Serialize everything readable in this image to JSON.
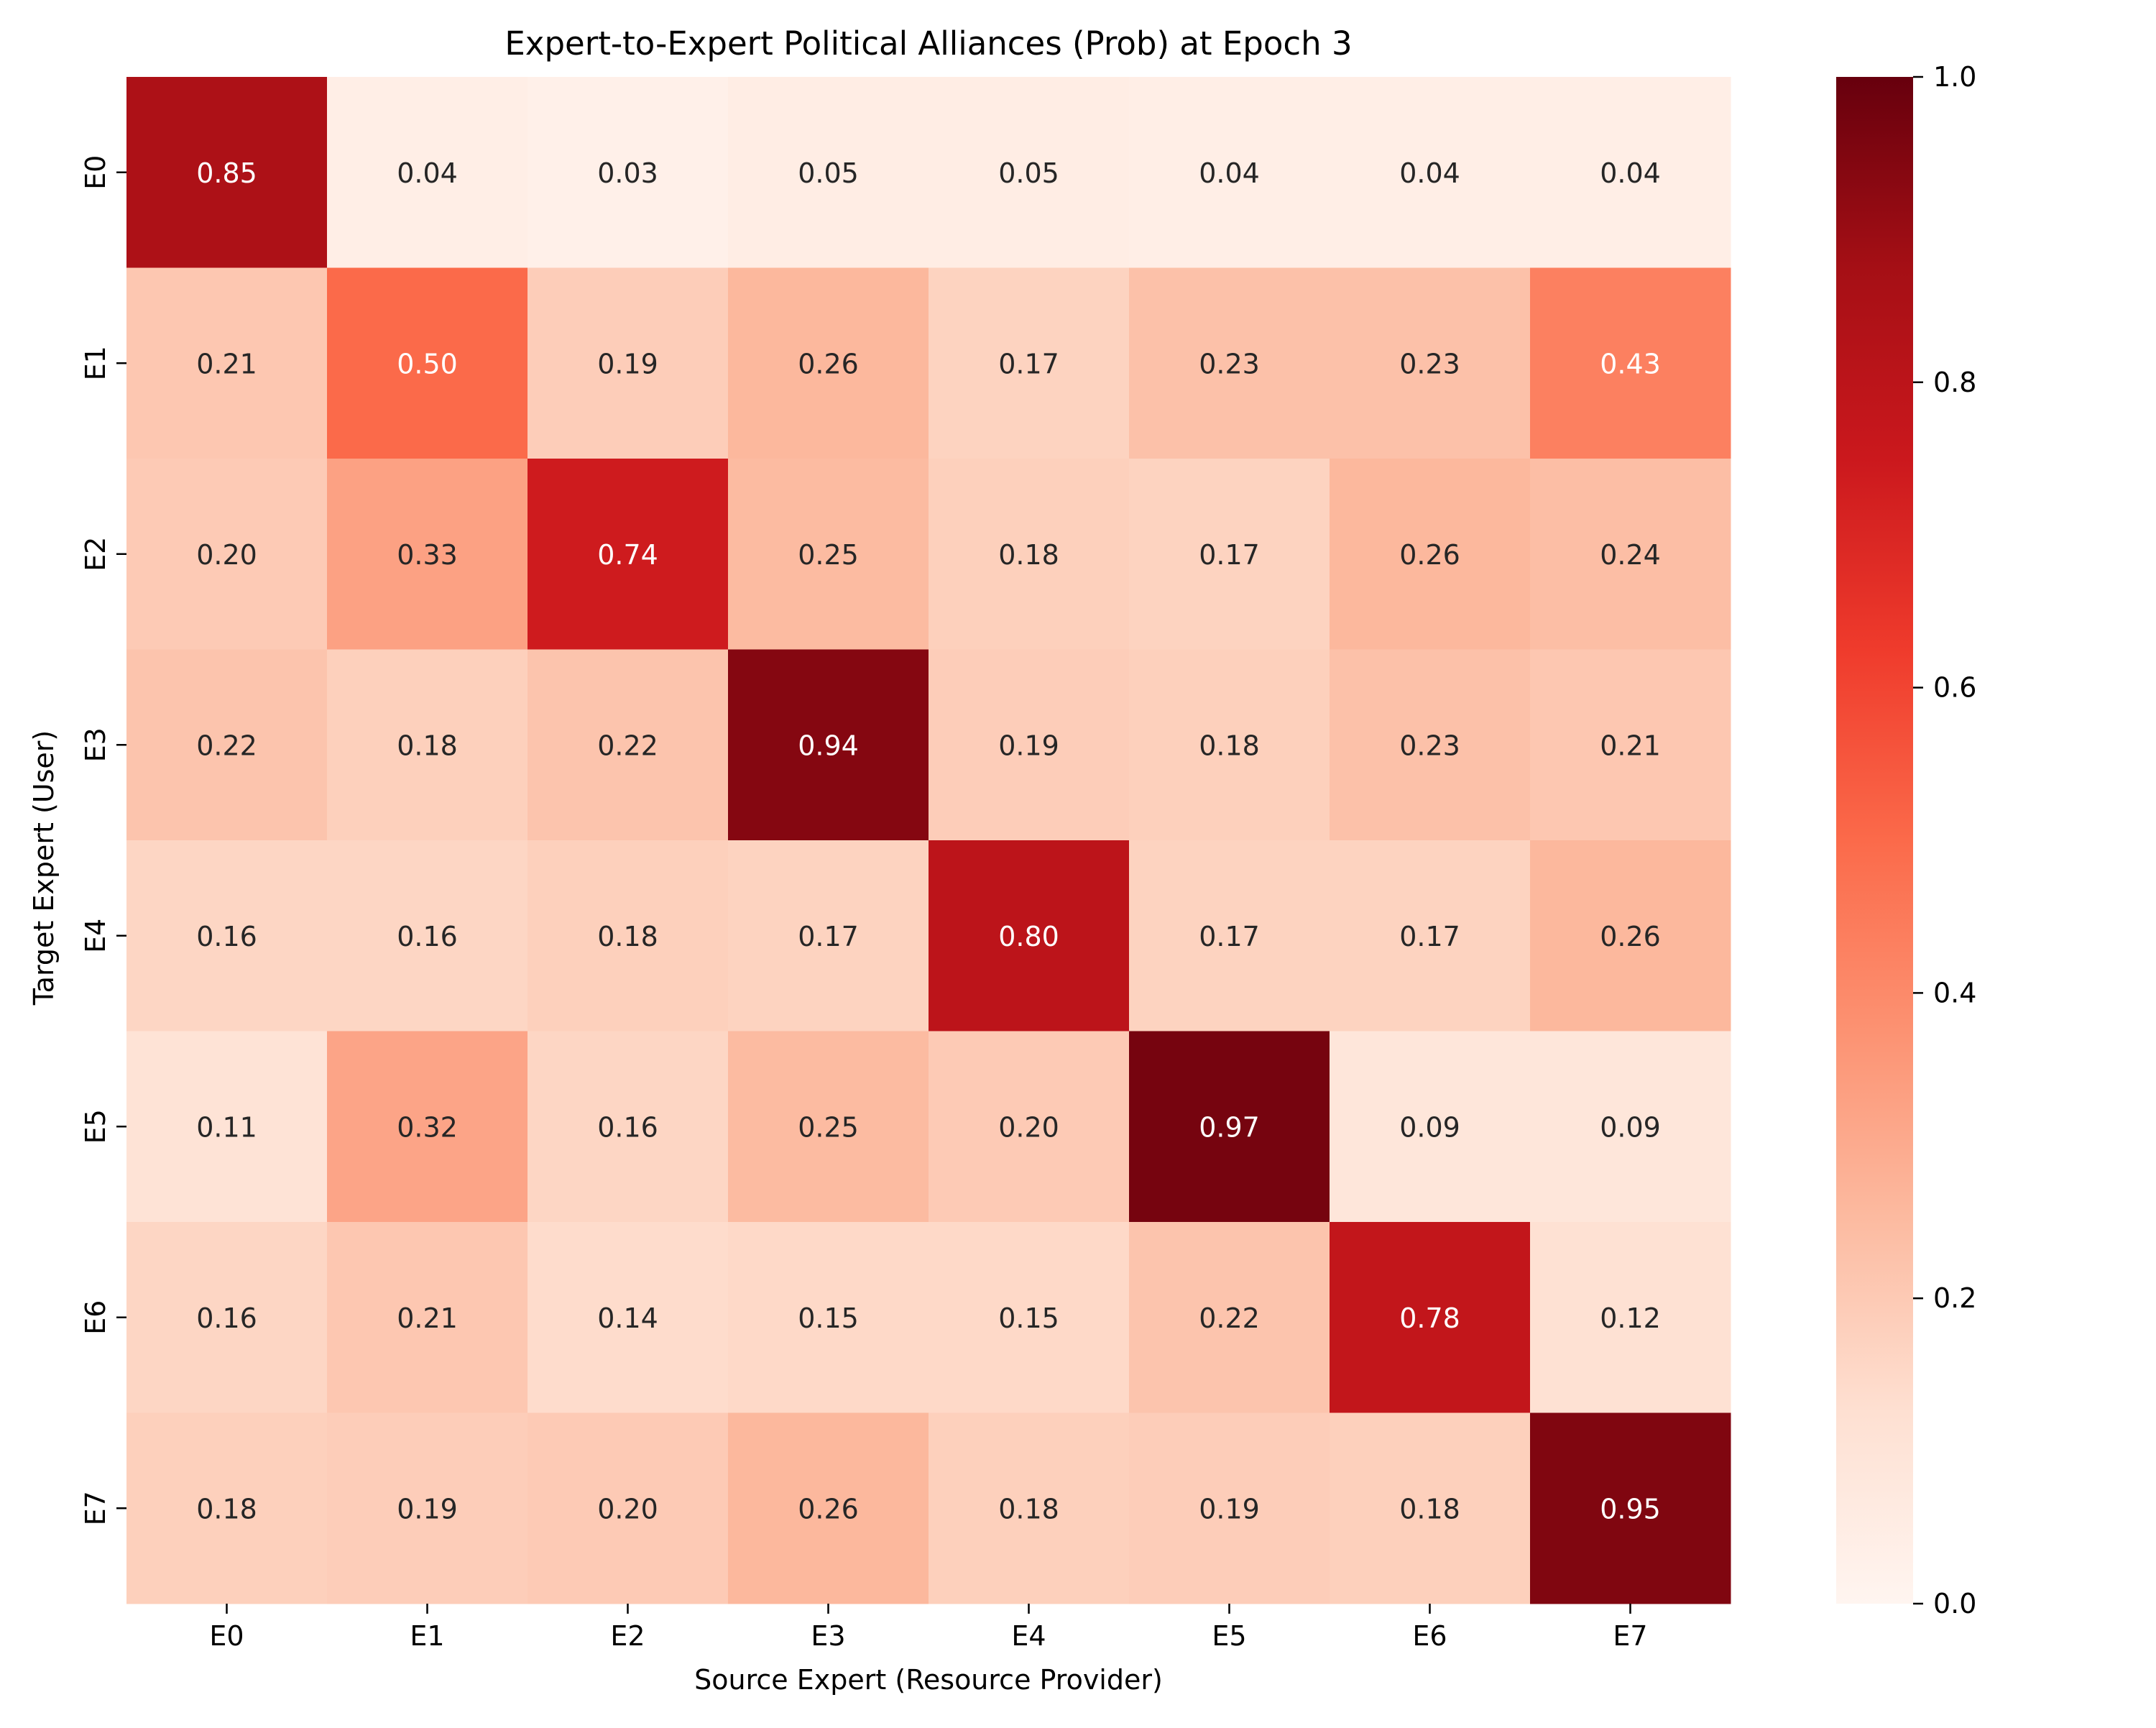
{
  "chart_data": {
    "type": "heatmap",
    "title": "Expert-to-Expert Political Alliances (Prob) at Epoch 3",
    "xlabel": "Source Expert (Resource Provider)",
    "ylabel": "Target Expert (User)",
    "x_categories": [
      "E0",
      "E1",
      "E2",
      "E3",
      "E4",
      "E5",
      "E6",
      "E7"
    ],
    "y_categories": [
      "E0",
      "E1",
      "E2",
      "E3",
      "E4",
      "E5",
      "E6",
      "E7"
    ],
    "values": [
      [
        0.85,
        0.04,
        0.03,
        0.05,
        0.05,
        0.04,
        0.04,
        0.04
      ],
      [
        0.21,
        0.5,
        0.19,
        0.26,
        0.17,
        0.23,
        0.23,
        0.43
      ],
      [
        0.2,
        0.33,
        0.74,
        0.25,
        0.18,
        0.17,
        0.26,
        0.24
      ],
      [
        0.22,
        0.18,
        0.22,
        0.94,
        0.19,
        0.18,
        0.23,
        0.21
      ],
      [
        0.16,
        0.16,
        0.18,
        0.17,
        0.8,
        0.17,
        0.17,
        0.26
      ],
      [
        0.11,
        0.32,
        0.16,
        0.25,
        0.2,
        0.97,
        0.09,
        0.09
      ],
      [
        0.16,
        0.21,
        0.14,
        0.15,
        0.15,
        0.22,
        0.78,
        0.12
      ],
      [
        0.18,
        0.19,
        0.2,
        0.26,
        0.18,
        0.19,
        0.18,
        0.95
      ]
    ],
    "value_format": "0.00",
    "colormap": "Reds",
    "colorbar": {
      "range": [
        0.0,
        1.0
      ],
      "ticks": [
        "0.0",
        "0.2",
        "0.4",
        "0.6",
        "0.8",
        "1.0"
      ],
      "position": "right"
    },
    "grid": false
  }
}
